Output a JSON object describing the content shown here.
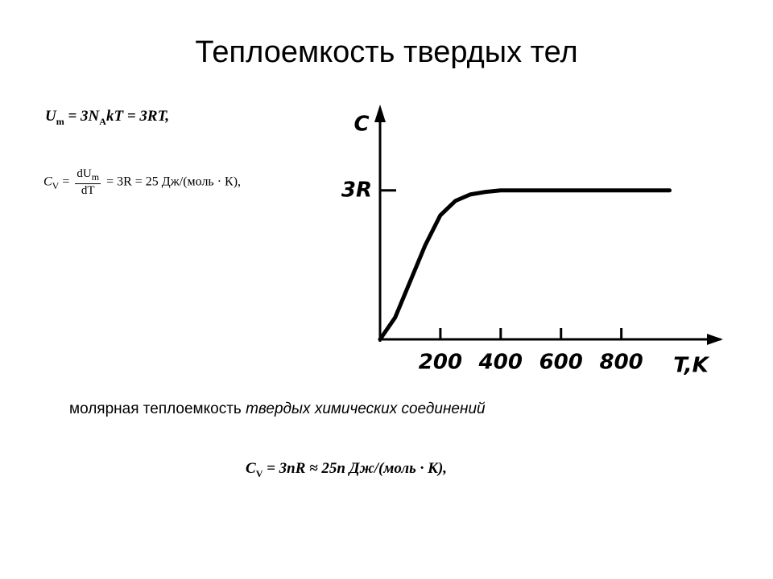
{
  "title": "Теплоемкость твердых тел",
  "formula1": {
    "a": "U",
    "a_sub": "m",
    "b": " = 3N",
    "b_sub": "A",
    "c": "kT = 3RT,"
  },
  "formula2": {
    "a": "C",
    "a_sub": "V",
    "b": " = ",
    "num": "dU",
    "num_sub": "m",
    "den": "dT",
    "c": " = 3R = 25 Дж/(моль · К),"
  },
  "caption": {
    "plain": "молярная теплоемкость ",
    "italic": "твердых химических соединений"
  },
  "formula3": {
    "a": "C",
    "a_sub": "V",
    "b": " = 3nR ≈ 25n Дж/(моль · К),"
  },
  "chart_data": {
    "type": "line",
    "xlabel": "T,K",
    "ylabel": "C",
    "x": [
      0,
      50,
      100,
      150,
      200,
      250,
      300,
      350,
      400,
      600,
      800,
      960
    ],
    "values": [
      0,
      0.44,
      1.17,
      1.9,
      2.5,
      2.79,
      2.92,
      2.97,
      3,
      3,
      3,
      3
    ],
    "color": "#000000",
    "xlim": [
      0,
      1100
    ],
    "ylim": [
      0,
      4.6
    ],
    "xticks": [
      200,
      400,
      600,
      800
    ],
    "yticks": [
      {
        "value": 3,
        "label": "3R"
      }
    ]
  }
}
